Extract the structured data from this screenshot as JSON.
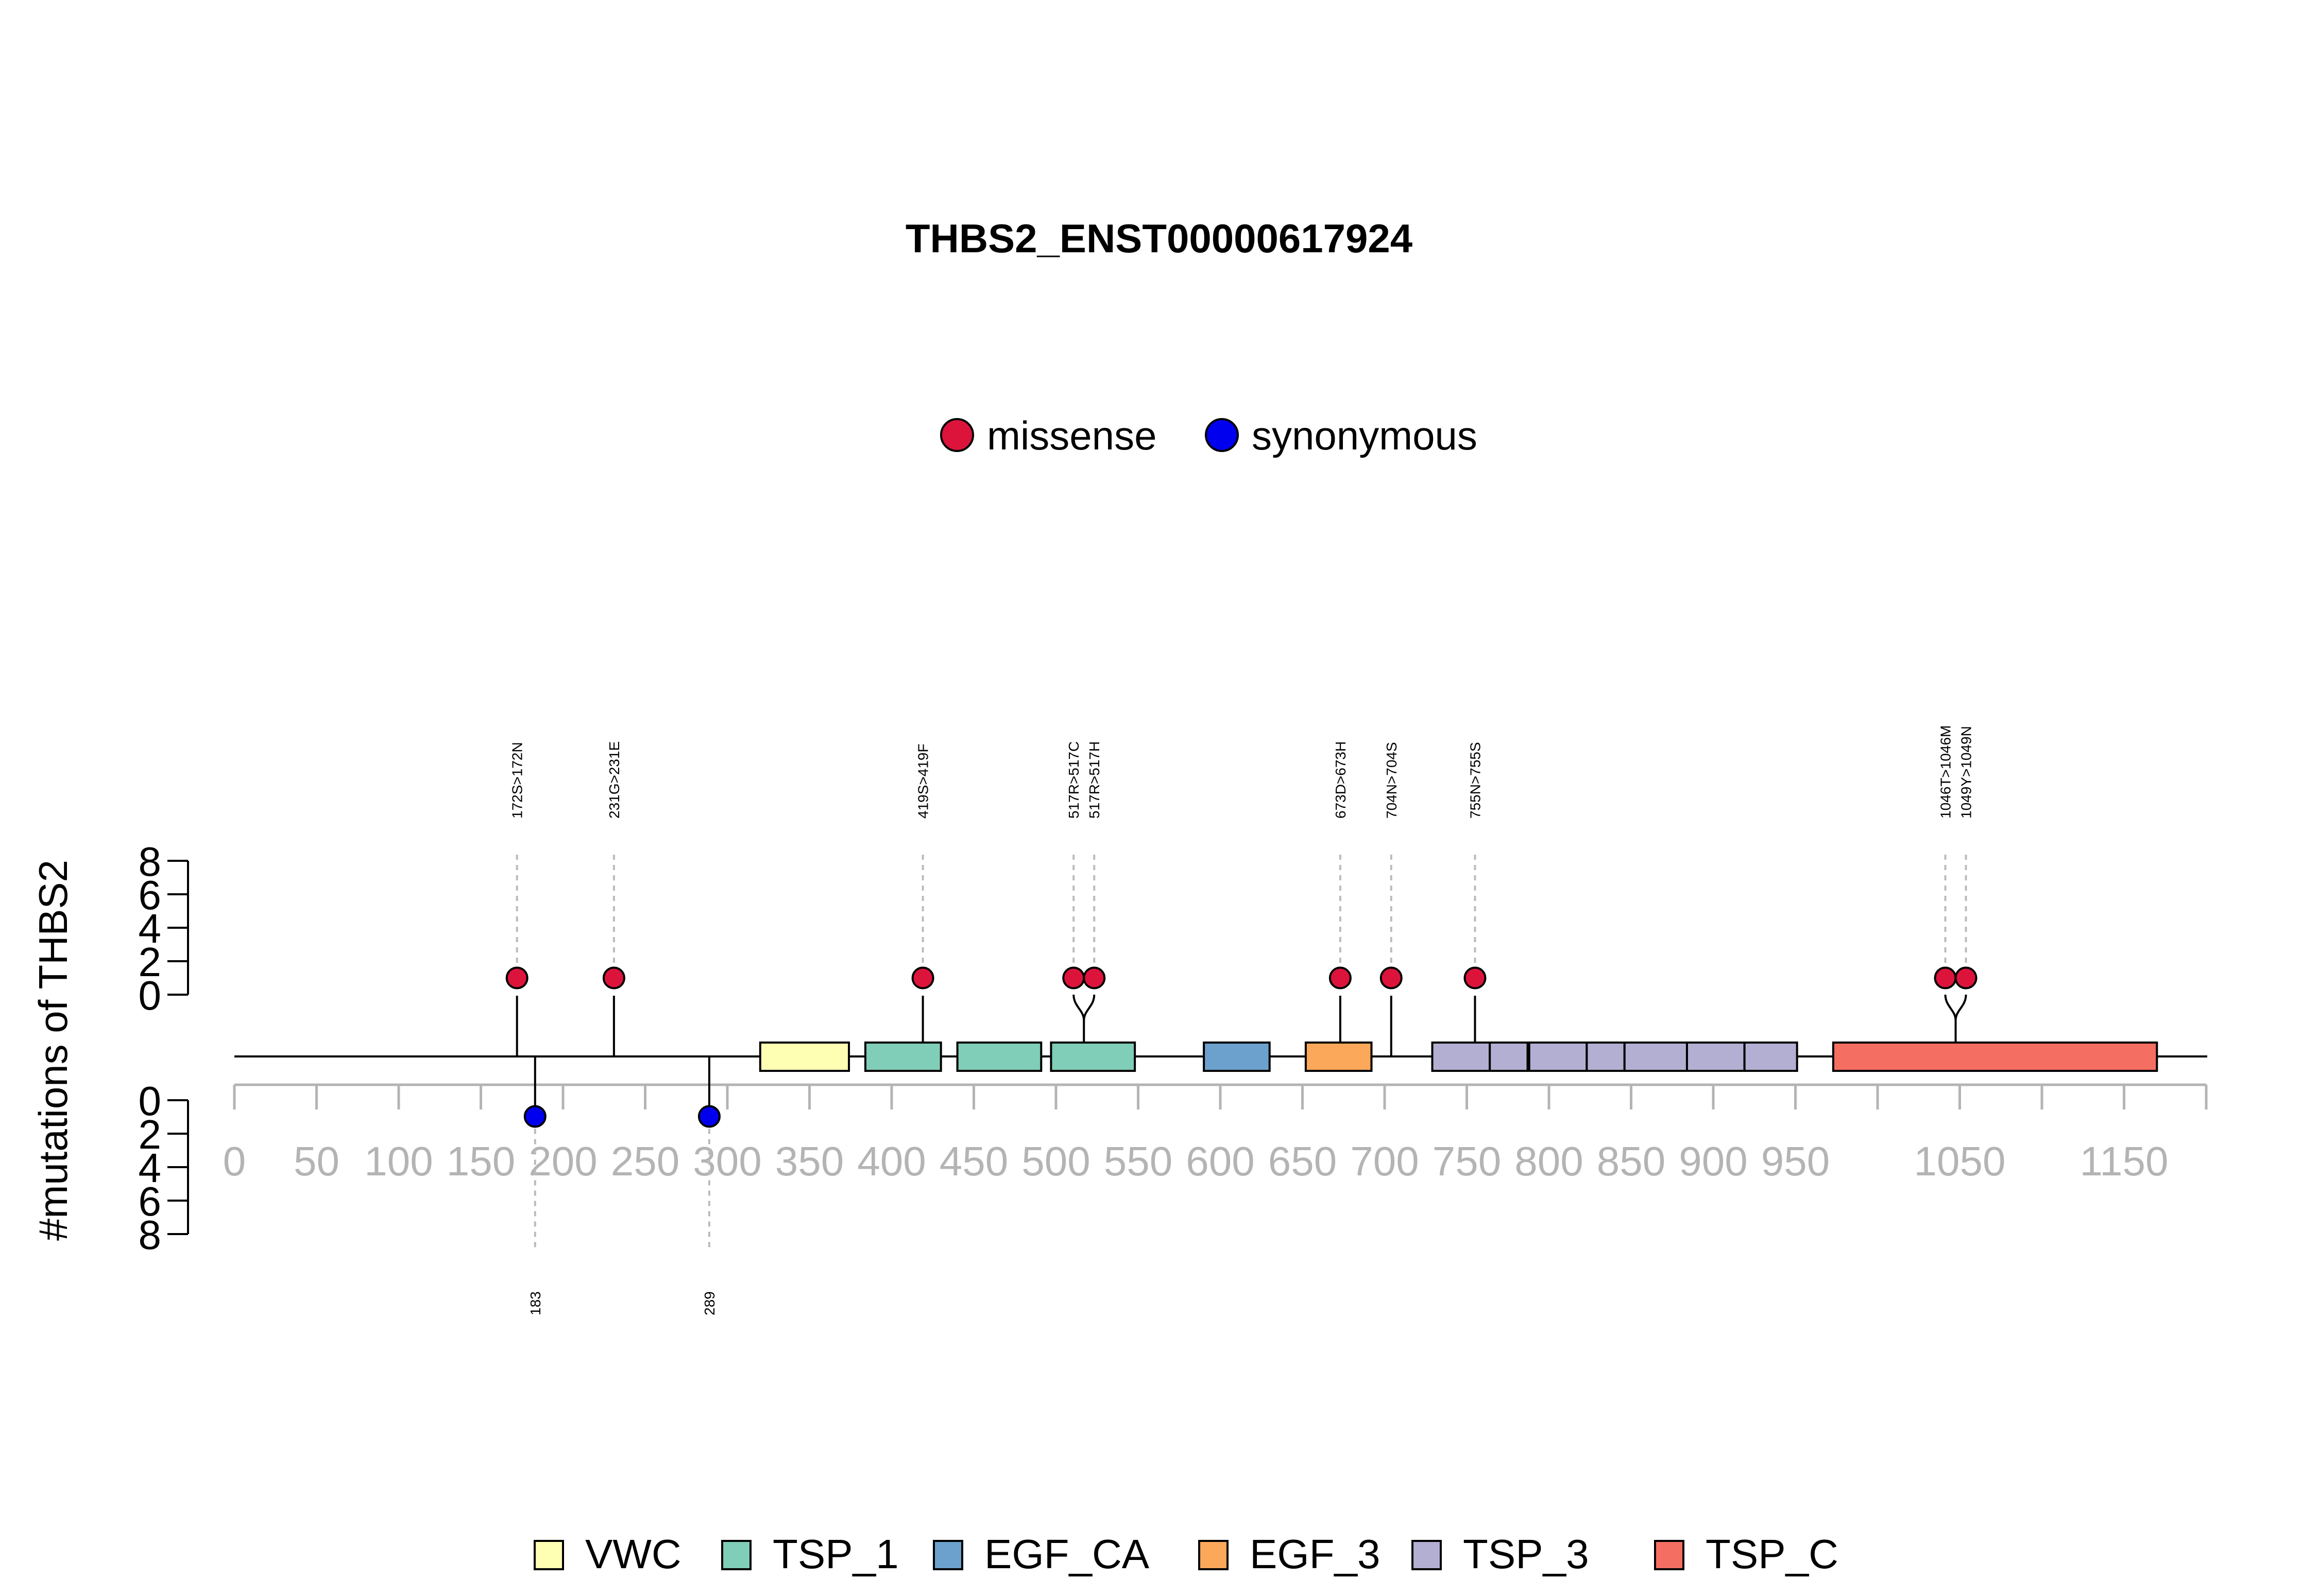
{
  "title": "THBS2_ENST00000617924",
  "ylabel": "#mutations of THBS2",
  "colors": {
    "missense": "#DC143C",
    "synonymous": "#0000EE",
    "dashed": "#BBBBBB",
    "axis_gray": "#B4B4B4",
    "VWC": "#FFFFB3",
    "TSP_1": "#80CDB8",
    "EGF_CA": "#6BA1CC",
    "EGF_3": "#FCA85A",
    "TSP_3": "#B3AFD2",
    "TSP_C": "#F56E62"
  },
  "legend_mutation": [
    {
      "label": "missense",
      "color_key": "missense"
    },
    {
      "label": "synonymous",
      "color_key": "synonymous"
    }
  ],
  "legend_domains": [
    {
      "label": "VWC",
      "color_key": "VWC"
    },
    {
      "label": "TSP_1",
      "color_key": "TSP_1"
    },
    {
      "label": "EGF_CA",
      "color_key": "EGF_CA"
    },
    {
      "label": "EGF_3",
      "color_key": "EGF_3"
    },
    {
      "label": "TSP_3",
      "color_key": "TSP_3"
    },
    {
      "label": "TSP_C",
      "color_key": "TSP_C"
    }
  ],
  "chart_data": {
    "type": "lollipop",
    "title": "THBS2_ENST00000617924",
    "ylabel": "#mutations of THBS2",
    "protein_length": 1200,
    "xlim": [
      0,
      1200
    ],
    "x_ticks": [
      0,
      50,
      100,
      150,
      200,
      250,
      300,
      350,
      400,
      450,
      500,
      550,
      600,
      650,
      700,
      750,
      800,
      850,
      900,
      950,
      1050,
      1150
    ],
    "y_ticks_upper": [
      0,
      2,
      4,
      6,
      8
    ],
    "y_ticks_lower": [
      0,
      2,
      4,
      6,
      8
    ],
    "ylim": [
      0,
      8
    ],
    "missense": [
      {
        "position": 172,
        "count": 1,
        "label": "172S>172N"
      },
      {
        "position": 231,
        "count": 1,
        "label": "231G>231E"
      },
      {
        "position": 419,
        "count": 1,
        "label": "419S>419F"
      },
      {
        "position": 517,
        "count": 1,
        "label": "517R>517C"
      },
      {
        "position": 517,
        "count": 1,
        "label": "517R>517H"
      },
      {
        "position": 673,
        "count": 1,
        "label": "673D>673H"
      },
      {
        "position": 704,
        "count": 1,
        "label": "704N>704S"
      },
      {
        "position": 755,
        "count": 1,
        "label": "755N>755S"
      },
      {
        "position": 1046,
        "count": 1,
        "label": "1046T>1046M"
      },
      {
        "position": 1049,
        "count": 1,
        "label": "1049Y>1049N"
      }
    ],
    "synonymous": [
      {
        "position": 183,
        "count": 1,
        "label": "183"
      },
      {
        "position": 289,
        "count": 1,
        "label": "289"
      }
    ],
    "domains": [
      {
        "name": "VWC",
        "start": 320,
        "end": 374
      },
      {
        "name": "TSP_1",
        "start": 384,
        "end": 430
      },
      {
        "name": "TSP_1",
        "start": 440,
        "end": 491
      },
      {
        "name": "TSP_1",
        "start": 497,
        "end": 548
      },
      {
        "name": "EGF_CA",
        "start": 590,
        "end": 630
      },
      {
        "name": "EGF_3",
        "start": 652,
        "end": 692
      },
      {
        "name": "TSP_3",
        "start": 729,
        "end": 764
      },
      {
        "name": "TSP_3",
        "start": 764,
        "end": 787
      },
      {
        "name": "TSP_3",
        "start": 788,
        "end": 823
      },
      {
        "name": "TSP_3",
        "start": 823,
        "end": 846
      },
      {
        "name": "TSP_3",
        "start": 846,
        "end": 884
      },
      {
        "name": "TSP_3",
        "start": 884,
        "end": 919
      },
      {
        "name": "TSP_3",
        "start": 919,
        "end": 951
      },
      {
        "name": "TSP_C",
        "start": 973,
        "end": 1170
      }
    ]
  }
}
